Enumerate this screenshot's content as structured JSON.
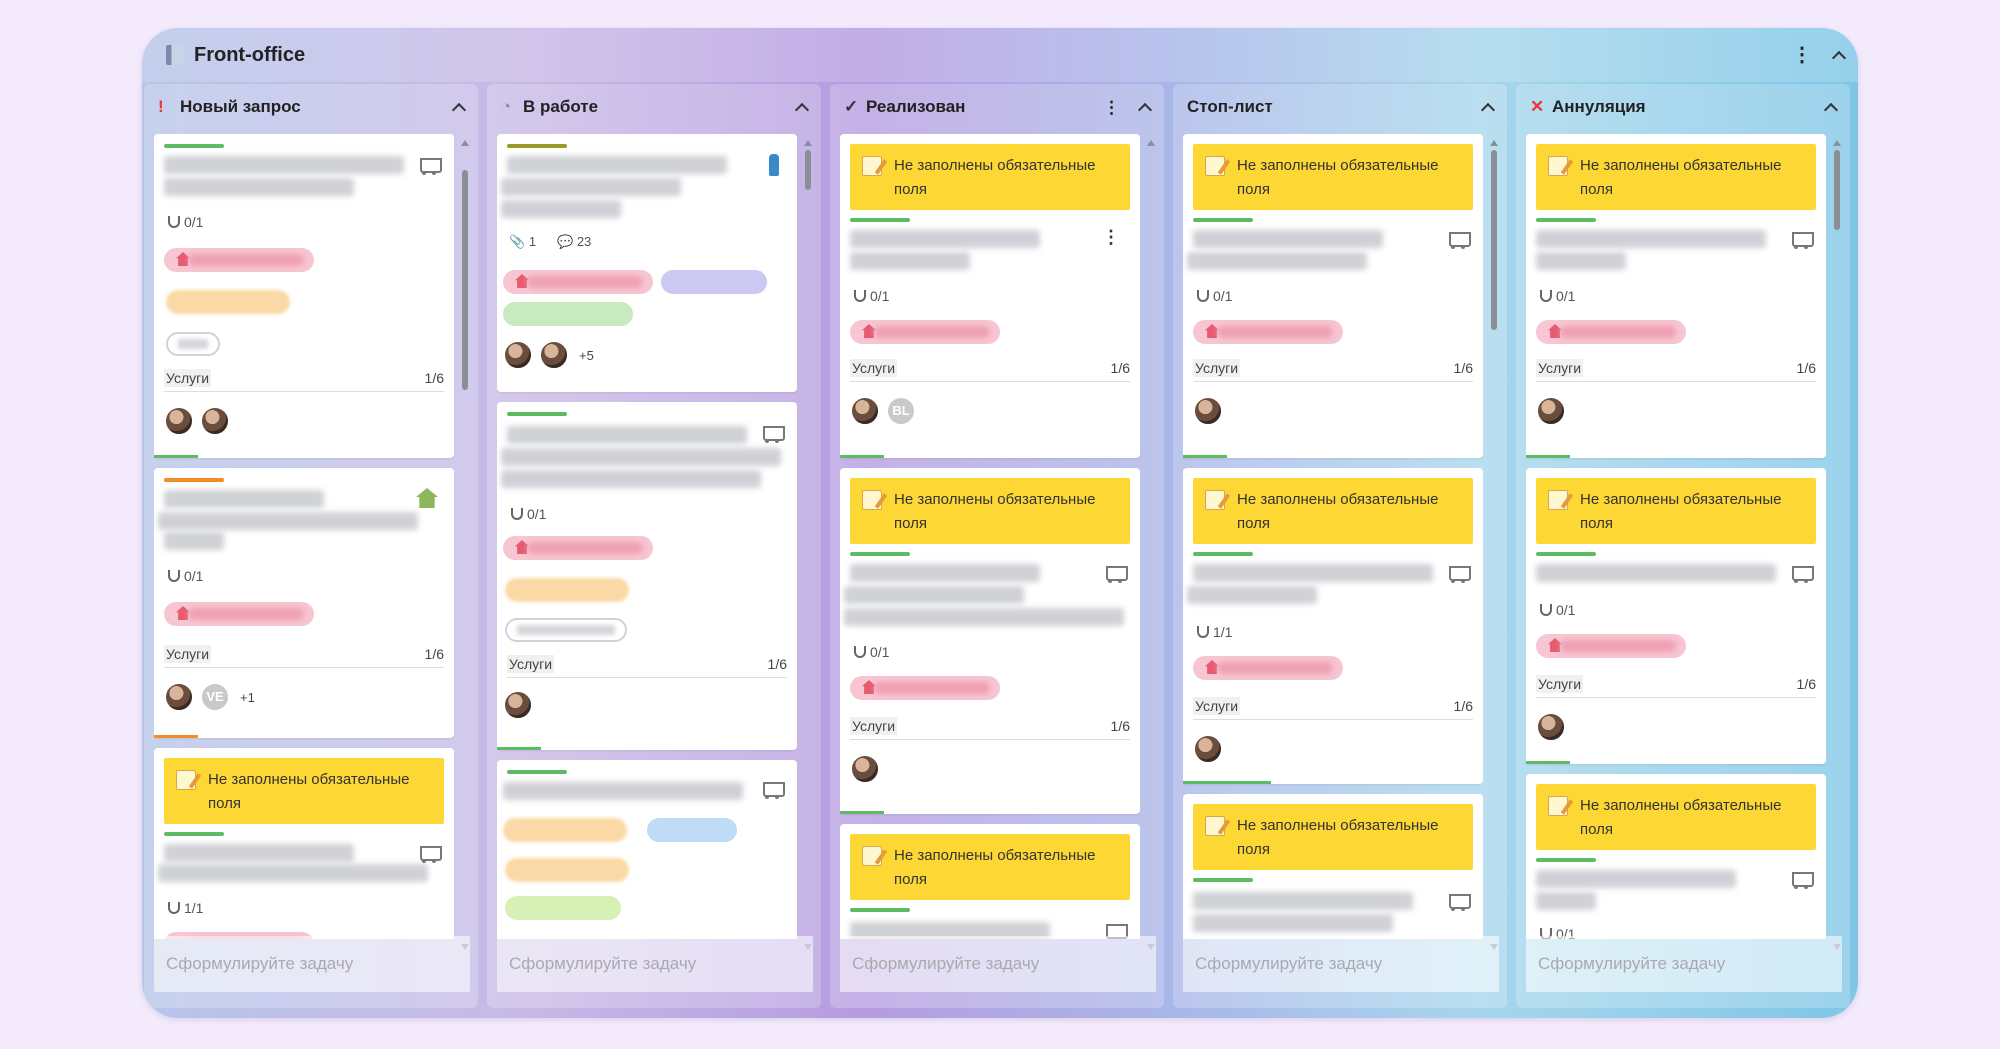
{
  "board": {
    "title": "Front-office",
    "compose_placeholder": "Сформулируйте задачу"
  },
  "columns": [
    {
      "title": "Новый запрос",
      "mark": "!",
      "mark_color": "#e53935"
    },
    {
      "title": "В работе",
      "mark": "◔",
      "mark_color": "#8e8e99"
    },
    {
      "title": "Реализован",
      "mark": "✓",
      "mark_color": "#333333"
    },
    {
      "title": "Стоп-лист",
      "mark": "",
      "mark_color": ""
    },
    {
      "title": "Аннуляция",
      "mark": "✕",
      "mark_color": "#e53935"
    }
  ],
  "warning_text": "Не заполнены обязательные поля",
  "labels": {
    "services": "Услуги",
    "services_count": "1/6",
    "subtasks_0_1": "0/1",
    "subtasks_1_1": "1/1",
    "attachments": "1",
    "comments": "23",
    "more_5": "+5",
    "more_1": "+1",
    "avatar_ve": "VE",
    "avatar_bl": "BL"
  },
  "colors": {
    "warning": "#fdd835",
    "accent_green": "#5dbb63",
    "accent_orange": "#f28c28",
    "accent_olive": "#9a9a2a"
  }
}
